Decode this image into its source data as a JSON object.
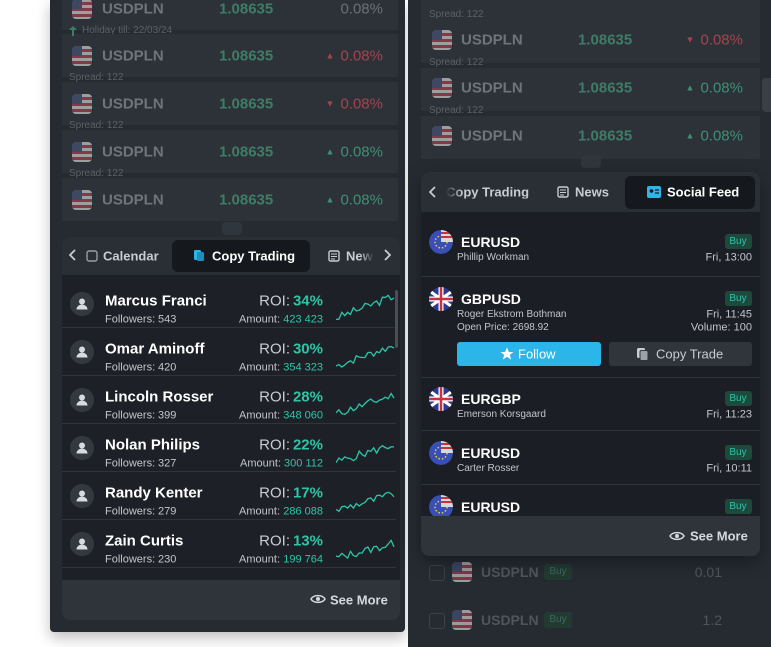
{
  "left_quotes": [
    {
      "symbol": "USDPLN",
      "price": "1.08635",
      "change": "0.08%",
      "change_color": "#6b7077",
      "note": "Holiday till: 22/03/24"
    },
    {
      "symbol": "USDPLN",
      "price": "1.08635",
      "arrow": "▲",
      "change": "0.08%",
      "change_color": "#a5444c",
      "note": "Spread: 122"
    },
    {
      "symbol": "USDPLN",
      "price": "1.08635",
      "arrow": "▼",
      "change": "0.08%",
      "change_color": "#a5444c",
      "note": "Spread: 122"
    },
    {
      "symbol": "USDPLN",
      "price": "1.08635",
      "arrow": "▲",
      "change": "0.08%",
      "change_color": "#3f8f73",
      "note": "Spread: 122"
    },
    {
      "symbol": "USDPLN",
      "price": "1.08635",
      "arrow": "▲",
      "change": "0.08%",
      "change_color": "#3f8f73"
    }
  ],
  "left_tabs": [
    "Calendar",
    "Copy Trading",
    "News"
  ],
  "trader_labels": {
    "roi": "ROI:",
    "followers": "Followers:",
    "amount": "Amount:"
  },
  "traders": [
    {
      "name": "Marcus Franci",
      "followers": "543",
      "roi": "34%",
      "amount": "423 423"
    },
    {
      "name": "Omar Aminoff",
      "followers": "420",
      "roi": "30%",
      "amount": "354 323"
    },
    {
      "name": "Lincoln Rosser",
      "followers": "399",
      "roi": "28%",
      "amount": "348 060"
    },
    {
      "name": "Nolan Philips",
      "followers": "327",
      "roi": "22%",
      "amount": "300 112"
    },
    {
      "name": "Randy Kenter",
      "followers": "279",
      "roi": "17%",
      "amount": "286 088"
    },
    {
      "name": "Zain Curtis",
      "followers": "230",
      "roi": "13%",
      "amount": "199 764"
    }
  ],
  "see_more": "See More",
  "right_top_note": "Spread: 122",
  "right_quotes": [
    {
      "symbol": "USDPLN",
      "price": "1.08635",
      "arrow": "▼",
      "change": "0.08%",
      "change_color": "#a5444c",
      "note": "Spread: 122"
    },
    {
      "symbol": "USDPLN",
      "price": "1.08635",
      "arrow": "▲",
      "change": "0.08%",
      "change_color": "#3f8f73",
      "note": "Spread: 122"
    },
    {
      "symbol": "USDPLN",
      "price": "1.08635",
      "arrow": "▲",
      "change": "0.08%",
      "change_color": "#3f8f73"
    }
  ],
  "right_tabs": [
    "Copy Trading",
    "News",
    "Social Feed"
  ],
  "feed": [
    {
      "symbol": "EURUSD",
      "author": "Phillip Workman",
      "side": "Buy",
      "time": "Fri, 13:00"
    },
    {
      "symbol": "GBPUSD",
      "author": "Roger Ekstrom Bothman",
      "side": "Buy",
      "time": "Fri, 11:45",
      "open_price": "Open Price: 2698.92",
      "volume": "Volume: 100"
    },
    {
      "symbol": "EURGBP",
      "author": "Emerson Korsgaard",
      "side": "Buy",
      "time": "Fri, 11:23"
    },
    {
      "symbol": "EURUSD",
      "author": "Carter Rosser",
      "side": "Buy",
      "time": "Fri, 10:11"
    },
    {
      "symbol": "EURUSD",
      "side": "Buy"
    }
  ],
  "buttons": {
    "follow": "Follow",
    "copy_trade": "Copy Trade"
  },
  "bottom_rows": [
    {
      "symbol": "USDPLN",
      "side": "Buy",
      "amount": "0.01"
    },
    {
      "symbol": "USDPLN",
      "side": "Buy",
      "amount": "1.2"
    }
  ]
}
